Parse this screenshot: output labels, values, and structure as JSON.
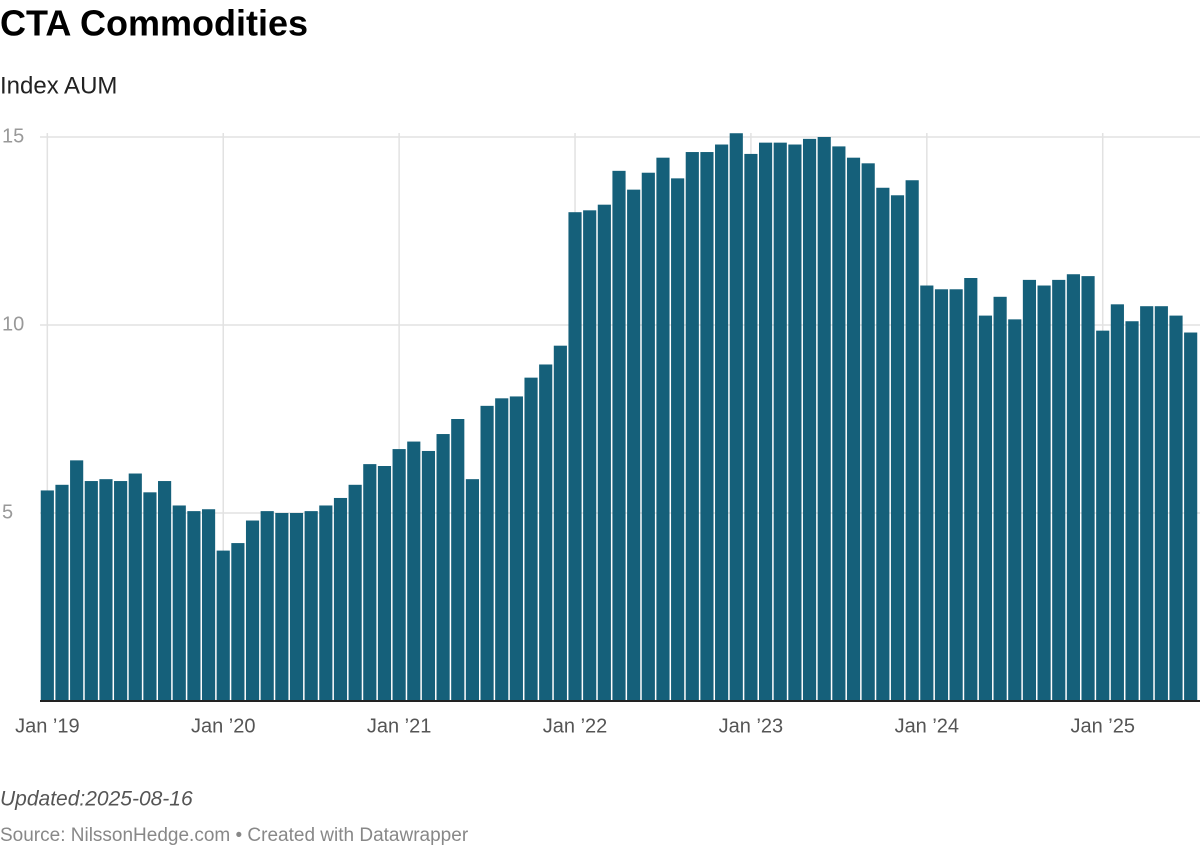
{
  "chart_data": {
    "type": "bar",
    "title": "CTA Commodities",
    "subtitle": "Index AUM",
    "note": "Updated:2025-08-16",
    "source": "Source: NilssonHedge.com • Created with Datawrapper",
    "color": "#15607a",
    "grid": true,
    "ylim": [
      0,
      15
    ],
    "yticks": [
      5,
      10,
      15
    ],
    "categories": [
      "Jan ’19",
      null,
      null,
      null,
      null,
      null,
      null,
      null,
      null,
      null,
      null,
      null,
      "Jan ’20",
      null,
      null,
      null,
      null,
      null,
      null,
      null,
      null,
      null,
      null,
      null,
      "Jan ’21",
      null,
      null,
      null,
      null,
      null,
      null,
      null,
      null,
      null,
      null,
      null,
      "Jan ’22",
      null,
      null,
      null,
      null,
      null,
      null,
      null,
      null,
      null,
      null,
      null,
      "Jan ’23",
      null,
      null,
      null,
      null,
      null,
      null,
      null,
      null,
      null,
      null,
      null,
      "Jan ’24",
      null,
      null,
      null,
      null,
      null,
      null,
      null,
      null,
      null,
      null,
      null,
      "Jan ’25",
      null,
      null,
      null,
      null,
      null,
      null
    ],
    "values": [
      5.6,
      5.75,
      6.4,
      5.85,
      5.9,
      5.85,
      6.05,
      5.55,
      5.85,
      5.2,
      5.05,
      5.1,
      4.0,
      4.2,
      4.8,
      5.05,
      5.0,
      5.0,
      5.05,
      5.2,
      5.4,
      5.75,
      6.3,
      6.25,
      6.7,
      6.9,
      6.65,
      7.1,
      7.5,
      5.9,
      7.85,
      8.05,
      8.1,
      8.6,
      8.95,
      9.45,
      13.0,
      13.05,
      13.2,
      14.1,
      13.6,
      14.05,
      14.45,
      13.9,
      14.6,
      14.6,
      14.8,
      15.1,
      14.55,
      14.85,
      14.85,
      14.8,
      14.95,
      15.0,
      14.75,
      14.45,
      14.3,
      13.65,
      13.45,
      13.85,
      11.05,
      10.95,
      10.95,
      11.25,
      10.25,
      10.75,
      10.15,
      11.2,
      11.05,
      11.2,
      11.35,
      11.3,
      9.85,
      10.55,
      10.1,
      10.5,
      10.5,
      10.25,
      9.8
    ]
  }
}
